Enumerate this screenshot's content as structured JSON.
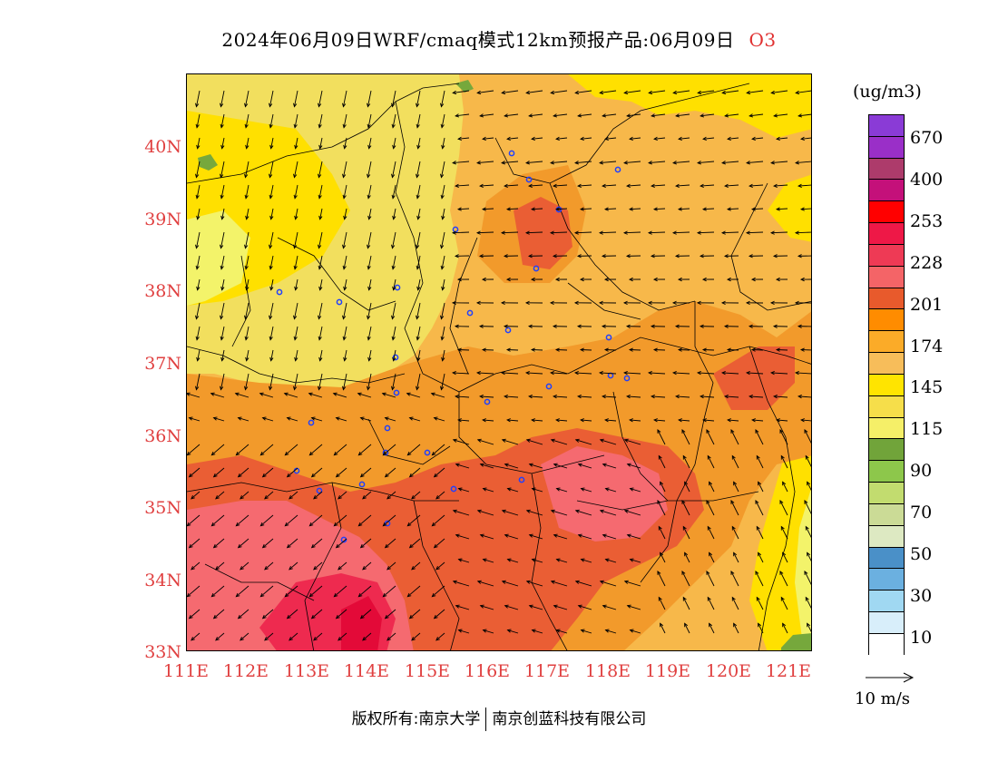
{
  "title": {
    "main": "2024年06月09日WRF/cmaq模式12km预报产品:06月09日",
    "species": "O3"
  },
  "map": {
    "lat_labels": [
      "40N",
      "39N",
      "38N",
      "37N",
      "36N",
      "35N",
      "34N",
      "33N"
    ],
    "lon_labels": [
      "111E",
      "112E",
      "113E",
      "114E",
      "115E",
      "116E",
      "117E",
      "118E",
      "119E",
      "120E",
      "121E"
    ],
    "lat_range": [
      33,
      41
    ],
    "lon_range": [
      111,
      121.4
    ],
    "colors": {
      "c10": "#ffffff",
      "c115": "#f3f36a",
      "c145": "#ffe000",
      "c150": "#f2df5e",
      "c174": "#f7b84a",
      "c201": "#f29a2b",
      "c228": "#ea5e34",
      "c230": "#f56a70",
      "c253": "#ee2a4f",
      "c_peak": "#e30a38",
      "low_green": "#76a83c"
    }
  },
  "legend": {
    "unit": "(ug/m3)",
    "swatches": [
      "#8a3bd6",
      "#9a2fc8",
      "#ad3b6b",
      "#c4107a",
      "#ff0000",
      "#ee1847",
      "#ee3a55",
      "#f46467",
      "#e85a2c",
      "#ff8c00",
      "#fbab28",
      "#f7bd5a",
      "#ffe400",
      "#f6de4a",
      "#f5ef68",
      "#71a43a",
      "#8dc74b",
      "#c2dc6f",
      "#cbdb96",
      "#dde9c2",
      "#4a90c8",
      "#6bb0e0",
      "#a0d8f2",
      "#d8eefa",
      "#ffffff"
    ],
    "ticks": [
      "670",
      "400",
      "253",
      "228",
      "201",
      "174",
      "145",
      "115",
      "90",
      "70",
      "50",
      "30",
      "10"
    ]
  },
  "wind_key": {
    "label": "10 m/s"
  },
  "footer": {
    "left": "版权所有:南京大学",
    "right": "南京创蓝科技有限公司"
  }
}
